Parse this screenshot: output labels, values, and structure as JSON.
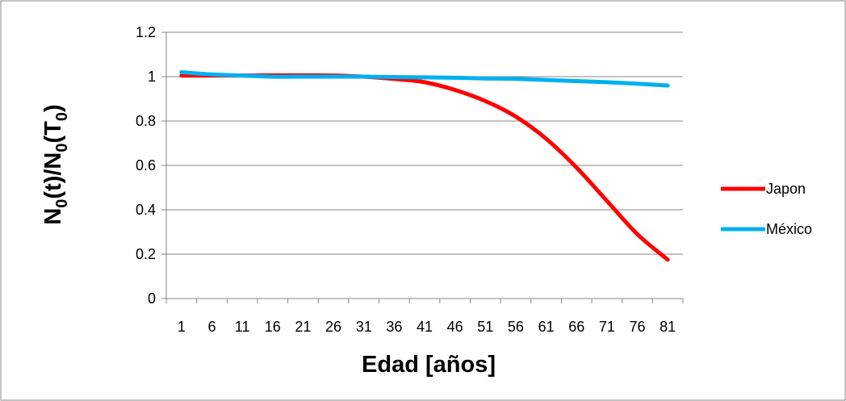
{
  "chart_data": {
    "type": "line",
    "x": [
      "1",
      "6",
      "11",
      "16",
      "21",
      "26",
      "31",
      "36",
      "41",
      "46",
      "51",
      "56",
      "61",
      "66",
      "71",
      "76",
      "81"
    ],
    "series": [
      {
        "name": "Japon",
        "color": "#ff0000",
        "values": [
          1.005,
          1.005,
          1.005,
          1.006,
          1.006,
          1.005,
          1.0,
          0.99,
          0.975,
          0.94,
          0.89,
          0.82,
          0.72,
          0.59,
          0.44,
          0.29,
          0.175
        ]
      },
      {
        "name": "México",
        "color": "#00b0f0",
        "values": [
          1.02,
          1.01,
          1.005,
          1.0,
          1.0,
          1.0,
          1.0,
          0.998,
          0.997,
          0.995,
          0.992,
          0.99,
          0.985,
          0.98,
          0.975,
          0.968,
          0.96
        ]
      }
    ],
    "ylim": [
      0,
      1.2
    ],
    "yticks": [
      "0",
      "0.2",
      "0.4",
      "0.6",
      "0.8",
      "1",
      "1.2"
    ],
    "xlabel": "Edad [años]",
    "ylabel": {
      "n1": "N",
      "sub1": "0",
      "mid": "(t)/N",
      "sub2": "0",
      "mid2": "(T",
      "sub3": "0",
      "end": ")"
    },
    "grid": "horizontal",
    "legend_position": "right",
    "colors": {
      "grid": "#868686",
      "axis": "#868686",
      "frame": "#868686"
    }
  }
}
